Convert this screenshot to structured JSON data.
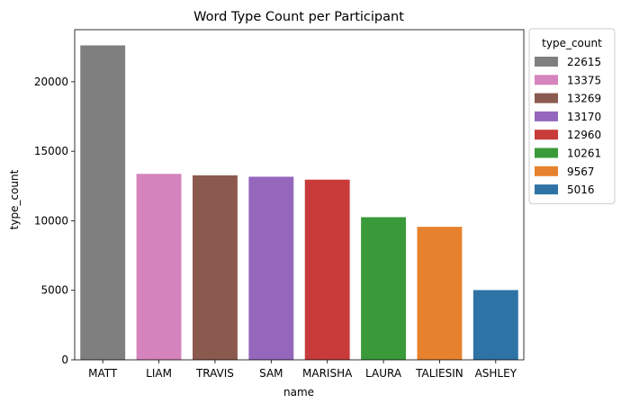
{
  "chart_data": {
    "type": "bar",
    "title": "Word Type Count per Participant",
    "xlabel": "name",
    "ylabel": "type_count",
    "categories": [
      "MATT",
      "LIAM",
      "TRAVIS",
      "SAM",
      "MARISHA",
      "LAURA",
      "TALIESIN",
      "ASHLEY"
    ],
    "values": [
      22615,
      13375,
      13269,
      13170,
      12960,
      10261,
      9567,
      5016
    ],
    "colors": [
      "#7f7f7f",
      "#d684bd",
      "#8b5a4e",
      "#9467bd",
      "#c83b3a",
      "#3a9a3a",
      "#e6822e",
      "#2e73a6"
    ],
    "ylim": [
      0,
      23746
    ],
    "yticks": [
      0,
      5000,
      10000,
      15000,
      20000
    ],
    "ytick_labels": [
      "0",
      "5000",
      "10000",
      "15000",
      "20000"
    ],
    "grid": false,
    "legend": {
      "title": "type_count",
      "placement": "outside-top-right",
      "entries": [
        "22615",
        "13375",
        "13269",
        "13170",
        "12960",
        "10261",
        "9567",
        "5016"
      ]
    }
  }
}
